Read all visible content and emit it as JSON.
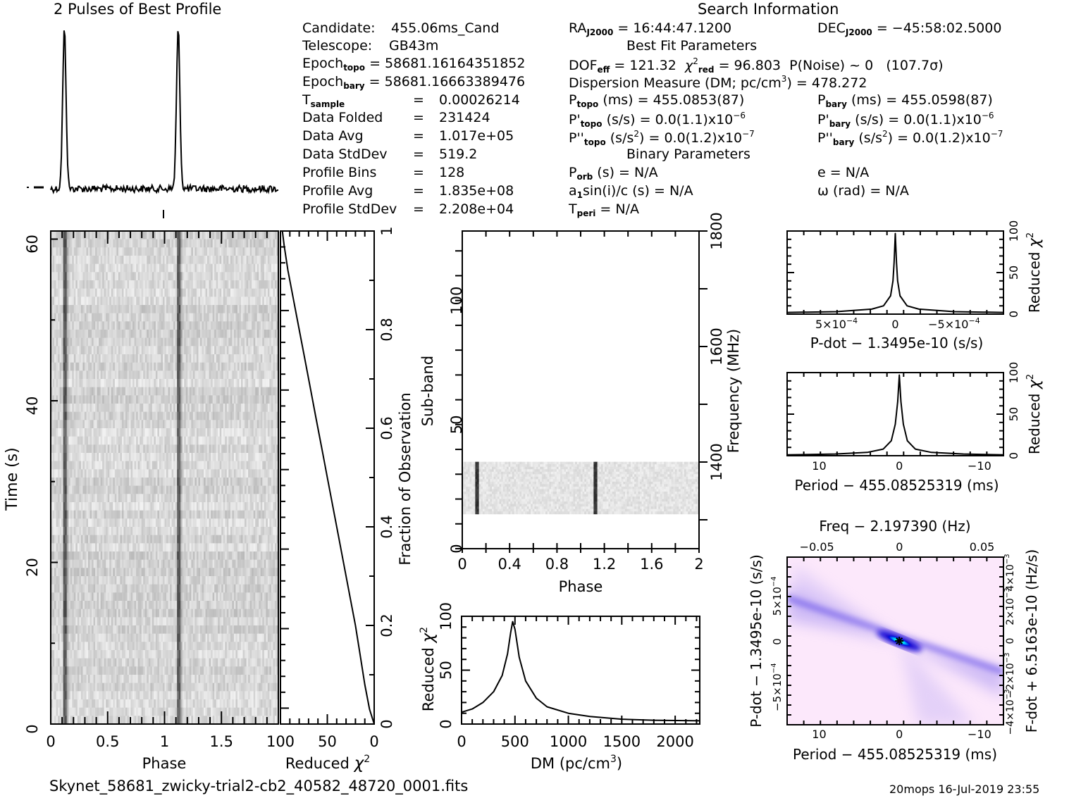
{
  "profile_title": "2 Pulses of Best Profile",
  "search_title": "Search Information",
  "footer": {
    "filename": "Skynet_58681_zwicky-trial2-cb2_40582_48720_0001.fits",
    "stamp": "20mops 16-Jul-2019 23:55"
  },
  "info": {
    "candidate_label": "Candidate:",
    "candidate": "455.06ms_Cand",
    "telescope_label": "Telescope:",
    "telescope": "GB43m",
    "epoch_topo_label": "Epoch",
    "epoch_topo_sub": "topo",
    "epoch_topo": "= 58681.16164351852",
    "epoch_bary_label": "Epoch",
    "epoch_bary_sub": "bary",
    "epoch_bary": "= 58681.16663389476",
    "rows": [
      {
        "label": "T",
        "sub": "sample",
        "value": "0.00026214"
      },
      {
        "label": "Data Folded",
        "sub": "",
        "value": "231424"
      },
      {
        "label": "Data Avg",
        "sub": "",
        "value": "1.017e+05"
      },
      {
        "label": "Data StdDev",
        "sub": "",
        "value": "519.2"
      },
      {
        "label": "Profile Bins",
        "sub": "",
        "value": "128"
      },
      {
        "label": "Profile Avg",
        "sub": "",
        "value": "1.835e+08"
      },
      {
        "label": "Profile StdDev",
        "sub": "",
        "value": "2.208e+04"
      }
    ]
  },
  "search": {
    "ra": "= 16:44:47.1200",
    "dec": "= −45:58:02.5000",
    "best_fit_title": "Best Fit Parameters",
    "dof": "= 121.32",
    "chi2red": "= 96.803",
    "p_noise": "P(Noise) ~ 0",
    "sigma": "(107.7σ)",
    "dm_label": "Dispersion Measure (DM; pc/cm",
    "dm_value": ") = 478.272",
    "p_topo": "(ms) =  455.0853(87)",
    "p_bary": "(ms) =  455.0598(87)",
    "pd_topo": "(s/s) = 0.0(1.1)x10",
    "pd_bary": "(s/s) = 0.0(1.1)x10",
    "pd_exp": "−6",
    "pdd_topo": "= 0.0(1.2)x10",
    "pdd_bary": "= 0.0(1.2)x10",
    "pdd_exp": "−7",
    "binary_title": "Binary Parameters",
    "porb": "(s) = N/A",
    "e": "e = N/A",
    "a1sini": "sin(i)/c (s) = N/A",
    "omega": "ω (rad) = N/A",
    "tperi": "= N/A"
  },
  "chart_data": [
    {
      "id": "profile",
      "type": "line",
      "title": "2 Pulses of Best Profile",
      "xlabel": "",
      "ylabel": "",
      "xlim": [
        0,
        2
      ],
      "description": "Two identical narrow pulses at phase ~0.12 and ~1.12 over flat noisy baseline",
      "peak_phases": [
        0.12,
        1.12
      ],
      "peak_width_phase": 0.015
    },
    {
      "id": "time-phase",
      "type": "heatmap",
      "xlabel": "Phase",
      "ylabel": "Time (s)",
      "xlim": [
        0,
        2
      ],
      "ylim": [
        0,
        61
      ],
      "xticks": [
        "0",
        "0.5",
        "1",
        "1.5"
      ],
      "yticks": [
        "0",
        "20",
        "40",
        "60"
      ],
      "pulse_phases": [
        0.12,
        1.12
      ],
      "colormap": "gray"
    },
    {
      "id": "chi2-vs-time",
      "type": "line",
      "xlabel": "Reduced χ2",
      "ylabel": "Fraction of Observation",
      "xlim": [
        100,
        0
      ],
      "ylim": [
        0,
        1
      ],
      "xticks": [
        "100",
        "50",
        "0"
      ],
      "yticks": [
        "0",
        "0.2",
        "0.4",
        "0.6",
        "0.8",
        "1"
      ],
      "x": [
        0,
        5,
        10,
        15,
        20,
        26,
        30,
        34,
        38,
        44,
        50,
        55,
        62,
        68,
        75,
        80,
        86,
        92,
        96,
        98
      ],
      "y": [
        0,
        0.03,
        0.08,
        0.14,
        0.2,
        0.26,
        0.3,
        0.34,
        0.38,
        0.44,
        0.5,
        0.55,
        0.62,
        0.68,
        0.75,
        0.8,
        0.86,
        0.92,
        0.97,
        1.0
      ]
    },
    {
      "id": "subband-phase",
      "type": "heatmap",
      "xlabel": "Phase",
      "ylabel": "Sub-band",
      "y2label": "Frequency (MHz)",
      "xlim": [
        0,
        2
      ],
      "ylim": [
        0,
        128
      ],
      "y2lim": [
        1250,
        1800
      ],
      "xticks": [
        "0",
        "0.4",
        "0.8",
        "1.2",
        "1.6",
        "2"
      ],
      "yticks": [
        "0",
        "50",
        "100"
      ],
      "y2ticks": [
        "1400",
        "1600",
        "1800"
      ],
      "active_subbands": [
        14,
        35
      ],
      "pulse_phases": [
        0.12,
        1.12
      ],
      "colormap": "gray"
    },
    {
      "id": "dm-curve",
      "type": "line",
      "xlabel": "DM (pc/cm3)",
      "ylabel": "Reduced χ2",
      "xlim": [
        0,
        2230
      ],
      "ylim": [
        0,
        100
      ],
      "xticks": [
        "0",
        "500",
        "1000",
        "1500",
        "2000"
      ],
      "yticks": [
        "0",
        "50",
        "100"
      ],
      "x": [
        0,
        100,
        200,
        300,
        380,
        430,
        460,
        478,
        500,
        540,
        600,
        700,
        800,
        1000,
        1200,
        1500,
        1800,
        2230
      ],
      "y": [
        11,
        14,
        20,
        30,
        45,
        65,
        85,
        95,
        88,
        62,
        40,
        24,
        16,
        10,
        7,
        4.5,
        3.5,
        3
      ]
    },
    {
      "id": "pdot-curve",
      "type": "line",
      "xlabel": "P-dot − 1.3495e-10 (s/s)",
      "ylabel": "Reduced χ2",
      "xlim": [
        0.00092,
        -0.00092
      ],
      "ylim": [
        0,
        100
      ],
      "xticks": [
        "5x10^-4",
        "0",
        "-5x10^-4"
      ],
      "yticks": [
        "0",
        "50",
        "100"
      ],
      "x": [
        0.00092,
        0.0005,
        0.0002,
        0.0001,
        4e-05,
        2e-05,
        1e-05,
        0,
        -1e-05,
        -2e-05,
        -4e-05,
        -0.0001,
        -0.0002,
        -0.0005,
        -0.00092
      ],
      "y": [
        2,
        3,
        6,
        10,
        22,
        40,
        62,
        97,
        62,
        40,
        22,
        10,
        6,
        3,
        2
      ]
    },
    {
      "id": "period-curve",
      "type": "line",
      "xlabel": "Period − 455.08525319 (ms)",
      "ylabel": "Reduced χ2",
      "xlim": [
        14,
        -13
      ],
      "ylim": [
        0,
        100
      ],
      "xticks": [
        "10",
        "0",
        "-10"
      ],
      "yticks": [
        "0",
        "50",
        "100"
      ],
      "x": [
        14,
        8,
        4,
        2,
        1,
        0.5,
        0.2,
        0,
        -0.2,
        -0.5,
        -1,
        -2,
        -4,
        -8,
        -13
      ],
      "y": [
        1,
        2,
        4,
        8,
        18,
        38,
        65,
        97,
        65,
        38,
        18,
        8,
        4,
        2,
        1
      ]
    },
    {
      "id": "p-pdot-plane",
      "type": "heatmap",
      "title": "Freq − 2.197390 (Hz)",
      "xlabel": "Period − 455.08525319 (ms)",
      "ylabel": "P-dot − 1.3495e-10 (s/s)",
      "y2label": "F-dot + 6.5163e-10 (Hz/s)",
      "xlim": [
        14,
        -13
      ],
      "ylim": [
        0.00092,
        -0.00092
      ],
      "x2lim": [
        -0.068,
        0.063
      ],
      "xticks": [
        "10",
        "0",
        "-10"
      ],
      "x2ticks": [
        "-0.05",
        "0",
        "0.05"
      ],
      "yticks": [
        "-5x10^-4",
        "0",
        "5x10^-4"
      ],
      "y2ticks": [
        "4x10^-3",
        "2x10^-3",
        "0",
        "-2x10^-3",
        "-4x10^-3"
      ],
      "best_fit": [
        0,
        0
      ],
      "colormap": "white-pink-blue-cyan"
    }
  ]
}
